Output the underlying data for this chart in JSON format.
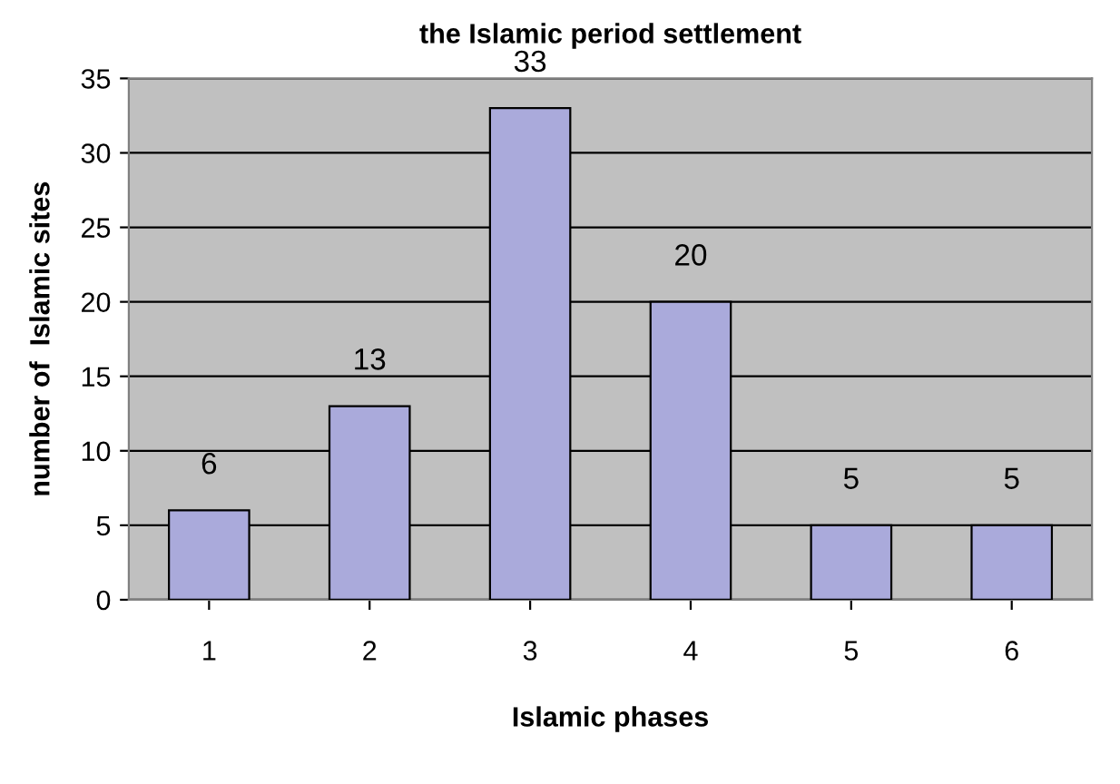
{
  "chart_data": {
    "type": "bar",
    "title": "the Islamic period settlement",
    "xlabel": "Islamic phases",
    "ylabel": "number of  Islamic sites",
    "categories": [
      "1",
      "2",
      "3",
      "4",
      "5",
      "6"
    ],
    "values": [
      6,
      13,
      33,
      20,
      5,
      5
    ],
    "color": "#aaaadb",
    "data_labels": true,
    "ylim": [
      0,
      35
    ],
    "yticks": [
      0,
      5,
      10,
      15,
      20,
      25,
      30,
      35
    ],
    "grid": "y"
  }
}
